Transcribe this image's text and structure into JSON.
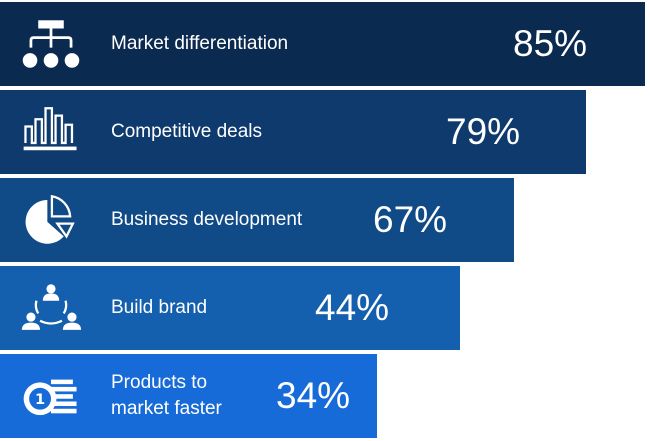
{
  "chart_data": {
    "type": "bar",
    "orientation": "horizontal",
    "categories": [
      "Market differentiation",
      "Competitive deals",
      "Business development",
      "Build brand",
      "Products to\nmarket faster"
    ],
    "values": [
      85,
      79,
      67,
      44,
      34
    ],
    "value_labels": [
      "85%",
      "79%",
      "67%",
      "44%",
      "34%"
    ],
    "icons": [
      "org-chart-icon",
      "bar-chart-icon",
      "pie-chart-icon",
      "team-network-icon",
      "coins-icon"
    ],
    "colors": [
      "#0b2a4f",
      "#0e3a6e",
      "#104a87",
      "#145fae",
      "#166bd8"
    ],
    "grid": false,
    "legend": "none"
  }
}
